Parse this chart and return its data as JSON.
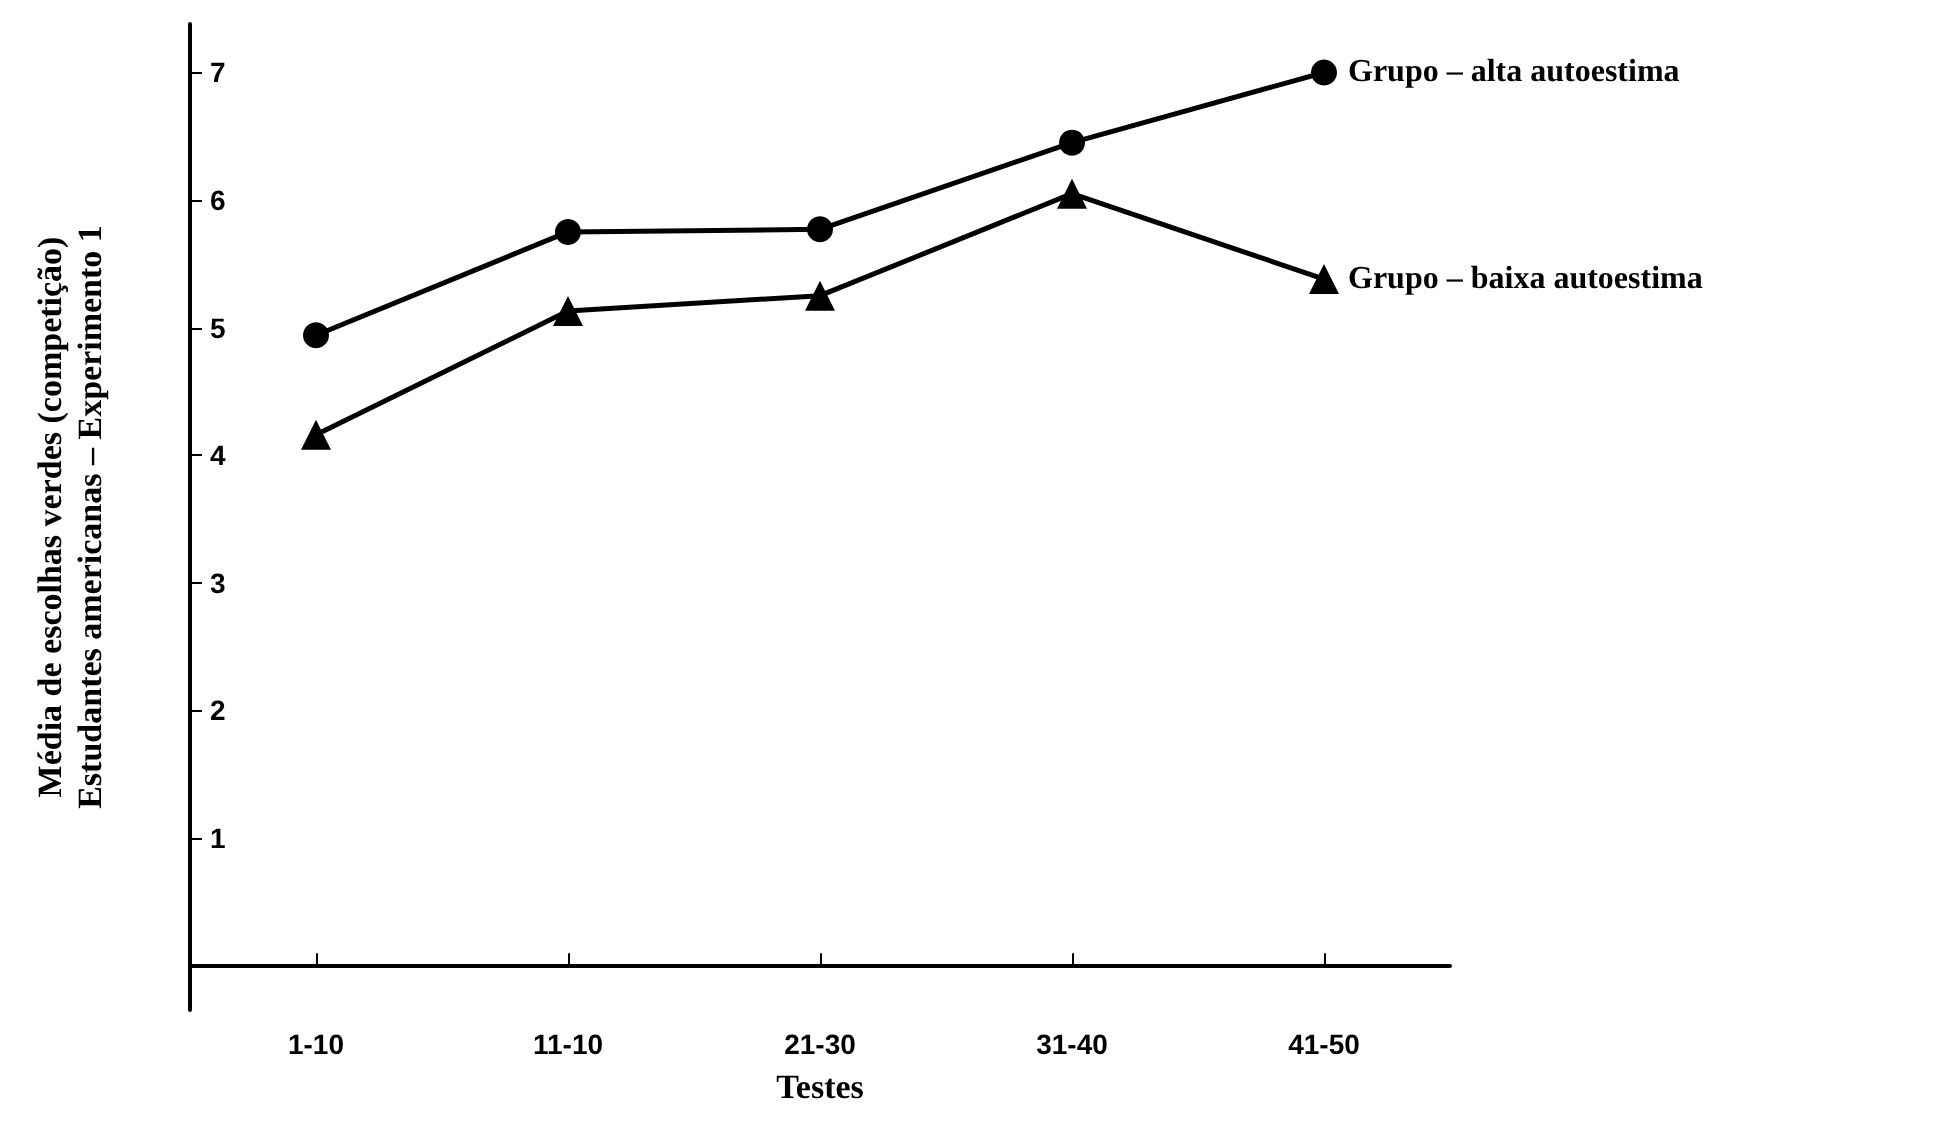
{
  "chart_data": {
    "type": "line",
    "xlabel": "Testes",
    "ylabel": "Média de escolhas verdes (competição)\nEstudantes americanas – Experimento 1",
    "categories": [
      "1-10",
      "11-10",
      "21-30",
      "31-40",
      "41-50"
    ],
    "series": [
      {
        "name": "Grupo – alta autoestima",
        "color": "#000000",
        "marker": "circle",
        "values": [
          4.94,
          5.75,
          5.77,
          6.45,
          7.0
        ]
      },
      {
        "name": "Grupo – baixa autoestima",
        "color": "#000000",
        "marker": "triangle",
        "values": [
          4.16,
          5.13,
          5.25,
          6.05,
          5.38
        ]
      }
    ],
    "ylim": [
      -0.35,
      7.38
    ],
    "yticks": [
      1,
      2,
      3,
      4,
      5,
      6,
      7
    ],
    "grid": false,
    "legend": false,
    "line_style": "solid"
  }
}
